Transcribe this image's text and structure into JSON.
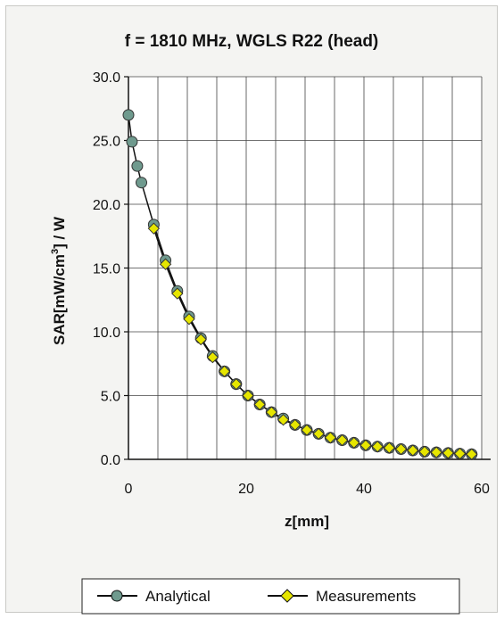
{
  "chart_data": {
    "type": "line",
    "title": "f = 1810 MHz, WGLS R22 (head)",
    "xlabel": "z[mm]",
    "ylabel_main": "SAR[mW/cm",
    "ylabel_sup": "3",
    "ylabel_tail": "] / W",
    "xlim": [
      0,
      60
    ],
    "ylim": [
      0,
      30
    ],
    "xticks": [
      0,
      20,
      40,
      60
    ],
    "xtick_labels": [
      "0",
      "20",
      "40",
      "60"
    ],
    "yticks": [
      0,
      5,
      10,
      15,
      20,
      25,
      30
    ],
    "ytick_labels": [
      "0.0",
      "5.0",
      "10.0",
      "15.0",
      "20.0",
      "25.0",
      "30.0"
    ],
    "grid": true,
    "legend": "bottom",
    "series": [
      {
        "name": "Analytical",
        "color": "#6f9a8e",
        "marker": "circle",
        "x": [
          0,
          0.6,
          1.5,
          2.2,
          4.3,
          6.3,
          8.3,
          10.3,
          12.3,
          14.3,
          16.3,
          18.3,
          20.3,
          22.3,
          24.3,
          26.3,
          28.3,
          30.3,
          32.3,
          34.3,
          36.3,
          38.3,
          40.3,
          42.3,
          44.3,
          46.3,
          48.3,
          50.3,
          52.3,
          54.3,
          56.3,
          58.3
        ],
        "y": [
          27.0,
          24.9,
          23.0,
          21.7,
          18.4,
          15.6,
          13.2,
          11.2,
          9.5,
          8.1,
          6.9,
          5.9,
          5.0,
          4.3,
          3.7,
          3.2,
          2.7,
          2.3,
          2.0,
          1.7,
          1.5,
          1.3,
          1.1,
          1.0,
          0.9,
          0.8,
          0.7,
          0.6,
          0.55,
          0.5,
          0.45,
          0.4
        ]
      },
      {
        "name": "Measurements",
        "color": "#e6e600",
        "marker": "diamond",
        "x": [
          4.3,
          6.3,
          8.3,
          10.3,
          12.3,
          14.3,
          16.3,
          18.3,
          20.3,
          22.3,
          24.3,
          26.3,
          28.3,
          30.3,
          32.3,
          34.3,
          36.3,
          38.3,
          40.3,
          42.3,
          44.3,
          46.3,
          48.3,
          50.3,
          52.3,
          54.3,
          56.3,
          58.3
        ],
        "y": [
          18.1,
          15.3,
          13.0,
          11.0,
          9.4,
          8.0,
          6.9,
          5.9,
          5.0,
          4.3,
          3.7,
          3.1,
          2.7,
          2.3,
          2.0,
          1.7,
          1.5,
          1.3,
          1.1,
          1.0,
          0.9,
          0.8,
          0.7,
          0.6,
          0.55,
          0.5,
          0.45,
          0.4
        ]
      }
    ]
  }
}
